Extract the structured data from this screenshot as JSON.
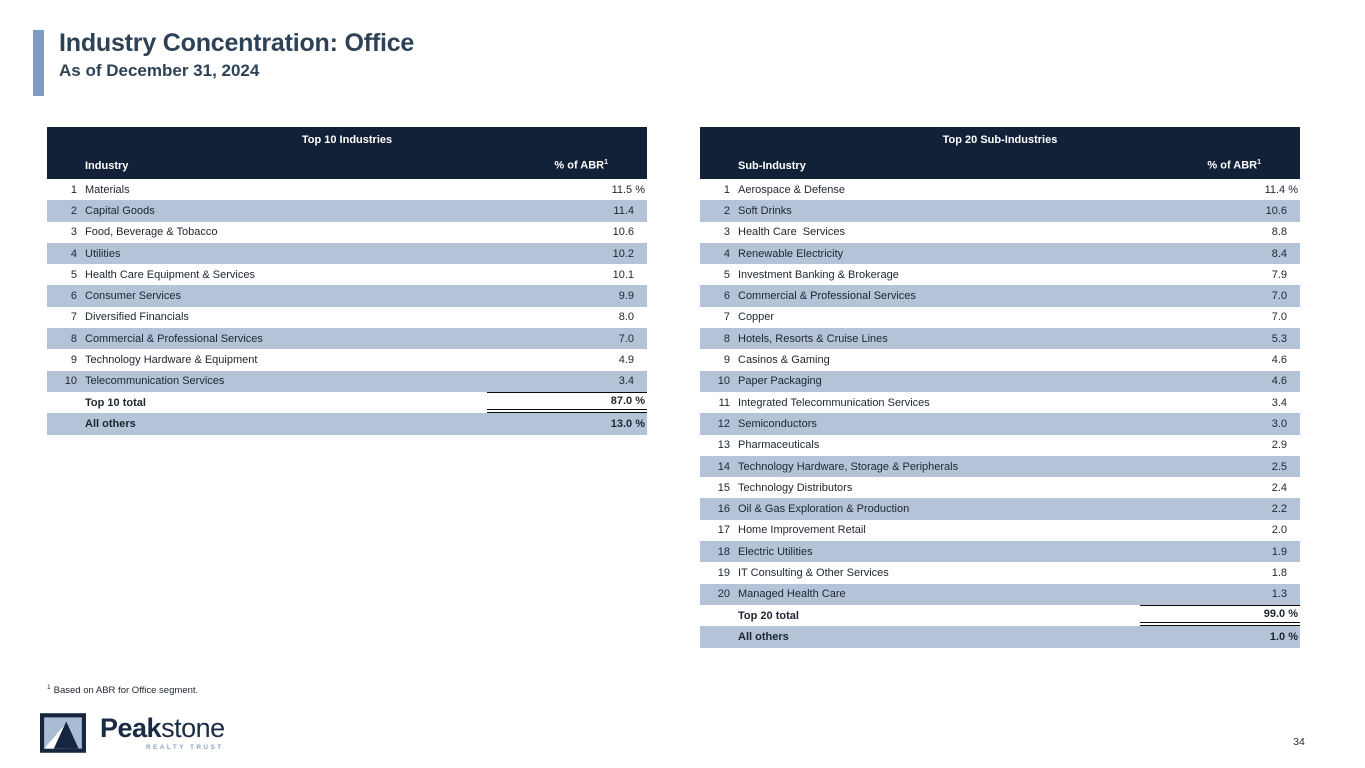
{
  "slide": {
    "title": "Industry Concentration: Office",
    "subtitle": "As of December 31, 2024",
    "footnote_marker": "1",
    "footnote_text": "Based on ABR for Office segment.",
    "page_number": "34"
  },
  "logo": {
    "brand_bold": "Peak",
    "brand_regular": "stone",
    "tagline": "REALTY TRUST"
  },
  "colors": {
    "header_navy": "#122138",
    "row_blue": "#b5c3d9",
    "accent_bar": "#7e9cc3",
    "title_text": "#2e4257",
    "logo_light_blue": "#a8bcd4"
  },
  "tables": [
    {
      "title": "Top 10 Industries",
      "col_name": "Industry",
      "col_value": "% of ABR",
      "col_value_sup": "1",
      "rows": [
        {
          "rank": "1",
          "label": "Materials",
          "value": "11.5 %"
        },
        {
          "rank": "2",
          "label": "Capital Goods",
          "value": "11.4"
        },
        {
          "rank": "3",
          "label": "Food, Beverage & Tobacco",
          "value": "10.6"
        },
        {
          "rank": "4",
          "label": "Utilities",
          "value": "10.2"
        },
        {
          "rank": "5",
          "label": "Health Care Equipment & Services",
          "value": "10.1"
        },
        {
          "rank": "6",
          "label": "Consumer Services",
          "value": "9.9"
        },
        {
          "rank": "7",
          "label": "Diversified Financials",
          "value": "8.0"
        },
        {
          "rank": "8",
          "label": "Commercial & Professional Services",
          "value": "7.0"
        },
        {
          "rank": "9",
          "label": "Technology Hardware & Equipment",
          "value": "4.9"
        },
        {
          "rank": "10",
          "label": "Telecommunication Services",
          "value": "3.4"
        }
      ],
      "total_label": "Top 10 total",
      "total_value": "87.0 %",
      "others_label": "All others",
      "others_value": "13.0 %"
    },
    {
      "title": "Top 20 Sub-Industries",
      "col_name": "Sub-Industry",
      "col_value": "% of ABR",
      "col_value_sup": "1",
      "rows": [
        {
          "rank": "1",
          "label": "Aerospace & Defense",
          "value": "11.4 %"
        },
        {
          "rank": "2",
          "label": "Soft Drinks",
          "value": "10.6"
        },
        {
          "rank": "3",
          "label": "Health Care  Services",
          "value": "8.8"
        },
        {
          "rank": "4",
          "label": "Renewable Electricity",
          "value": "8.4"
        },
        {
          "rank": "5",
          "label": "Investment Banking & Brokerage",
          "value": "7.9"
        },
        {
          "rank": "6",
          "label": "Commercial & Professional Services",
          "value": "7.0"
        },
        {
          "rank": "7",
          "label": "Copper",
          "value": "7.0"
        },
        {
          "rank": "8",
          "label": "Hotels, Resorts & Cruise Lines",
          "value": "5.3"
        },
        {
          "rank": "9",
          "label": "Casinos & Gaming",
          "value": "4.6"
        },
        {
          "rank": "10",
          "label": "Paper Packaging",
          "value": "4.6"
        },
        {
          "rank": "11",
          "label": "Integrated Telecommunication Services",
          "value": "3.4"
        },
        {
          "rank": "12",
          "label": "Semiconductors",
          "value": "3.0"
        },
        {
          "rank": "13",
          "label": "Pharmaceuticals",
          "value": "2.9"
        },
        {
          "rank": "14",
          "label": "Technology Hardware, Storage & Peripherals",
          "value": "2.5"
        },
        {
          "rank": "15",
          "label": "Technology Distributors",
          "value": "2.4"
        },
        {
          "rank": "16",
          "label": "Oil & Gas Exploration & Production",
          "value": "2.2"
        },
        {
          "rank": "17",
          "label": "Home Improvement Retail",
          "value": "2.0"
        },
        {
          "rank": "18",
          "label": "Electric Utilities",
          "value": "1.9"
        },
        {
          "rank": "19",
          "label": "IT Consulting & Other Services",
          "value": "1.8"
        },
        {
          "rank": "20",
          "label": "Managed Health Care",
          "value": "1.3"
        }
      ],
      "total_label": "Top 20 total",
      "total_value": "99.0 %",
      "others_label": "All others",
      "others_value": "1.0 %"
    }
  ]
}
